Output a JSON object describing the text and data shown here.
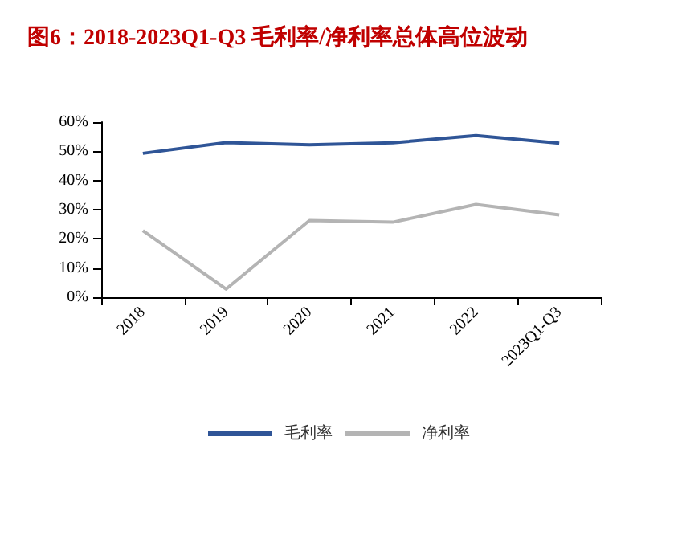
{
  "chart_data": {
    "type": "line",
    "title": "图6：2018-2023Q1-Q3 毛利率/净利率总体高位波动",
    "categories": [
      "2018",
      "2019",
      "2020",
      "2021",
      "2022",
      "2023Q1-Q3"
    ],
    "series": [
      {
        "name": "毛利率",
        "color": "#2f5597",
        "values": [
          49.3,
          53,
          52.2,
          52.9,
          55.4,
          52.8
        ]
      },
      {
        "name": "净利率",
        "color": "#b4b4b4",
        "values": [
          22.8,
          2.8,
          26.3,
          25.7,
          31.8,
          28.2
        ]
      }
    ],
    "ylim": [
      0,
      60
    ],
    "yticks": [
      {
        "value": 0,
        "label": "0%"
      },
      {
        "value": 10,
        "label": "10%"
      },
      {
        "value": 20,
        "label": "20%"
      },
      {
        "value": 30,
        "label": "30%"
      },
      {
        "value": 40,
        "label": "40%"
      },
      {
        "value": 50,
        "label": "50%"
      },
      {
        "value": 60,
        "label": "60%"
      }
    ],
    "grid": false,
    "legend": "bottom",
    "marker": "none",
    "line_style": "solid"
  }
}
